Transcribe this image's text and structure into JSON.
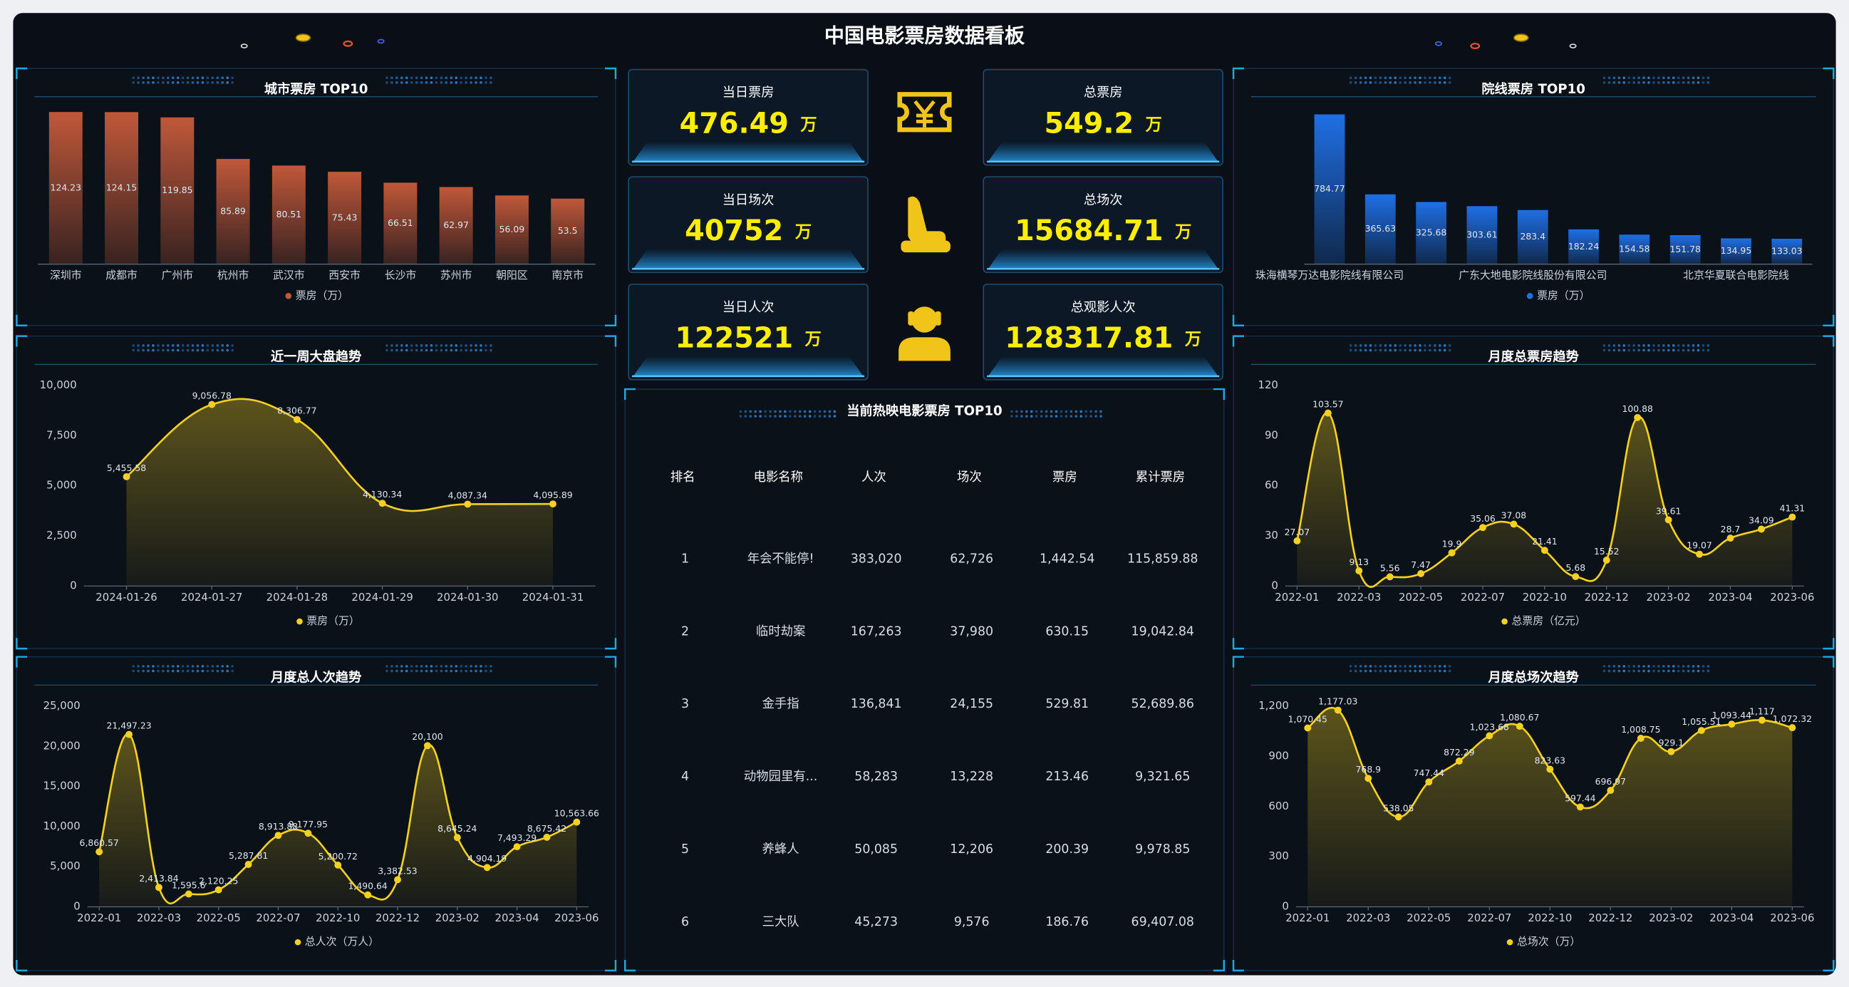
{
  "header": {
    "title": "中国电影票房数据看板"
  },
  "kpis": [
    {
      "label": "当日票房",
      "value": 476.49,
      "unit": "万"
    },
    {
      "label": "总票房",
      "value": 549.2,
      "unit": "万"
    },
    {
      "label": "当日场次",
      "value": 40752,
      "unit": "万"
    },
    {
      "label": "总场次",
      "value": 15684.71,
      "unit": "万"
    },
    {
      "label": "当日人次",
      "value": 122521,
      "unit": "万"
    },
    {
      "label": "总观影人次",
      "value": 128317.81,
      "unit": "万"
    }
  ],
  "table": {
    "title": "当前热映电影票房 TOP10",
    "columns": [
      "排名",
      "电影名称",
      "人次",
      "场次",
      "票房",
      "累计票房"
    ],
    "rows": [
      [
        "1",
        "年会不能停!",
        "383,020",
        "62,726",
        "1,442.54",
        "115,859.88"
      ],
      [
        "2",
        "临时劫案",
        "167,263",
        "37,980",
        "630.15",
        "19,042.84"
      ],
      [
        "3",
        "金手指",
        "136,841",
        "24,155",
        "529.81",
        "52,689.86"
      ],
      [
        "4",
        "动物园里有...",
        "58,283",
        "13,228",
        "213.46",
        "9,321.65"
      ],
      [
        "5",
        "养蜂人",
        "50,085",
        "12,206",
        "200.39",
        "9,978.85"
      ],
      [
        "6",
        "三大队",
        "45,273",
        "9,576",
        "186.76",
        "69,407.08"
      ]
    ]
  },
  "chart_data": [
    {
      "type": "bar",
      "title": "城市票房 TOP10",
      "categories": [
        "深圳市",
        "成都市",
        "广州市",
        "杭州市",
        "武汉市",
        "西安市",
        "长沙市",
        "苏州市",
        "朝阳区",
        "南京市"
      ],
      "series": [
        {
          "name": "票房（万）",
          "color": "#c0583a",
          "values": [
            124.23,
            124.15,
            119.85,
            85.89,
            80.51,
            75.43,
            66.51,
            62.97,
            56.09,
            53.5
          ]
        }
      ]
    },
    {
      "type": "bar",
      "title": "院线票房 TOP10",
      "categories": [
        "珠海横琴万达电影院线有限公司",
        null,
        null,
        null,
        "广东大地电影院线股份有限公司",
        null,
        null,
        null,
        "北京华夏联合电影院线",
        null
      ],
      "series": [
        {
          "name": "票房（万）",
          "color": "#1f6fe5",
          "values": [
            784.77,
            365.63,
            325.68,
            303.61,
            283.4,
            182.24,
            154.58,
            151.78,
            134.95,
            133.03
          ]
        }
      ]
    },
    {
      "type": "line",
      "title": "近一周大盘趋势",
      "smooth": true,
      "grid": false,
      "categories": [
        "2024-01-26",
        "2024-01-27",
        "2024-01-28",
        "2024-01-29",
        "2024-01-30",
        "2024-01-31"
      ],
      "series": [
        {
          "name": "票房（万）",
          "color": "#f5d020",
          "values": [
            5455.58,
            9056.78,
            8306.77,
            4130.34,
            4087.34,
            4095.89
          ],
          "value_labels": [
            "5,455.58",
            "9,056.78",
            "8,306.77",
            "4,130.34",
            "4,087.34",
            "4,095.89"
          ]
        }
      ],
      "ylim": [
        0,
        10000
      ],
      "yticks": [
        0,
        {
          "value": 2500,
          "label": "2,500"
        },
        {
          "value": 5000,
          "label": "5,000"
        },
        {
          "value": 7500,
          "label": "7,500"
        },
        {
          "value": 10000,
          "label": "10,000"
        }
      ]
    },
    {
      "type": "line",
      "title": "月度总票房趋势",
      "smooth": true,
      "grid": false,
      "categories": [
        "2022-01",
        null,
        "2022-03",
        null,
        "2022-05",
        null,
        "2022-07",
        null,
        "2022-10",
        null,
        "2022-12",
        null,
        "2023-02",
        null,
        "2023-04",
        null,
        "2023-06"
      ],
      "series": [
        {
          "name": "总票房（亿元）",
          "color": "#f5d020",
          "values": [
            27.07,
            103.57,
            9.13,
            5.56,
            7.47,
            19.9,
            35.06,
            37.08,
            21.41,
            5.68,
            15.52,
            100.88,
            39.61,
            19.07,
            28.7,
            34.09,
            41.31
          ]
        }
      ],
      "ylim": [
        0,
        120
      ],
      "yticks": [
        0,
        30,
        60,
        90,
        120
      ]
    },
    {
      "type": "line",
      "title": "月度总人次趋势",
      "smooth": true,
      "grid": false,
      "categories": [
        "2022-01",
        null,
        "2022-03",
        null,
        "2022-05",
        null,
        "2022-07",
        null,
        "2022-10",
        null,
        "2022-12",
        null,
        "2023-02",
        null,
        "2023-04",
        null,
        "2023-06"
      ],
      "series": [
        {
          "name": "总人次（万人）",
          "color": "#f5d020",
          "values": [
            6860.57,
            21497.23,
            2413.84,
            1595.6,
            2120.25,
            5287.81,
            8913.88,
            9177.95,
            5200.72,
            1490.64,
            3382.53,
            20100,
            8645.24,
            4904.19,
            7493.29,
            8675.42,
            10563.66
          ],
          "value_labels": [
            "6,860.57",
            "21,497.23",
            "2,413.84",
            "1,595.6",
            "2,120.25",
            "5,287.81",
            "8,913.88",
            "9,177.95",
            "5,200.72",
            "1,490.64",
            "3,382.53",
            "20,100",
            "8,645.24",
            "4,904.19",
            "7,493.29",
            "8,675.42",
            "10,563.66"
          ]
        }
      ],
      "ylim": [
        0,
        25000
      ],
      "yticks": [
        0,
        {
          "value": 5000,
          "label": "5,000"
        },
        {
          "value": 10000,
          "label": "10,000"
        },
        {
          "value": 15000,
          "label": "15,000"
        },
        {
          "value": 20000,
          "label": "20,000"
        },
        {
          "value": 25000,
          "label": "25,000"
        }
      ]
    },
    {
      "type": "line",
      "title": "月度总场次趋势",
      "smooth": true,
      "grid": false,
      "categories": [
        "2022-01",
        null,
        "2022-03",
        null,
        "2022-05",
        null,
        "2022-07",
        null,
        "2022-10",
        null,
        "2022-12",
        null,
        "2023-02",
        null,
        "2023-04",
        null,
        "2023-06"
      ],
      "series": [
        {
          "name": "总场次（万）",
          "color": "#f5d020",
          "values": [
            1070.45,
            1177.03,
            768.9,
            538.05,
            747.44,
            872.29,
            1023.68,
            1080.67,
            823.63,
            597.44,
            696.97,
            1008.75,
            929.1,
            1055.51,
            1093.44,
            1117,
            1072.32
          ],
          "value_labels": [
            "1,070.45",
            "1,177.03",
            "768.9",
            "538.05",
            "747.44",
            "872.29",
            "1,023.68",
            "1,080.67",
            "823.63",
            "597.44",
            "696.97",
            "1,008.75",
            "929.1",
            "1,055.51",
            "1,093.44",
            "1,117",
            "1,072.32"
          ]
        }
      ],
      "ylim": [
        0,
        1200
      ],
      "yticks": [
        0,
        300,
        600,
        900,
        {
          "value": 1200,
          "label": "1,200"
        }
      ]
    }
  ]
}
